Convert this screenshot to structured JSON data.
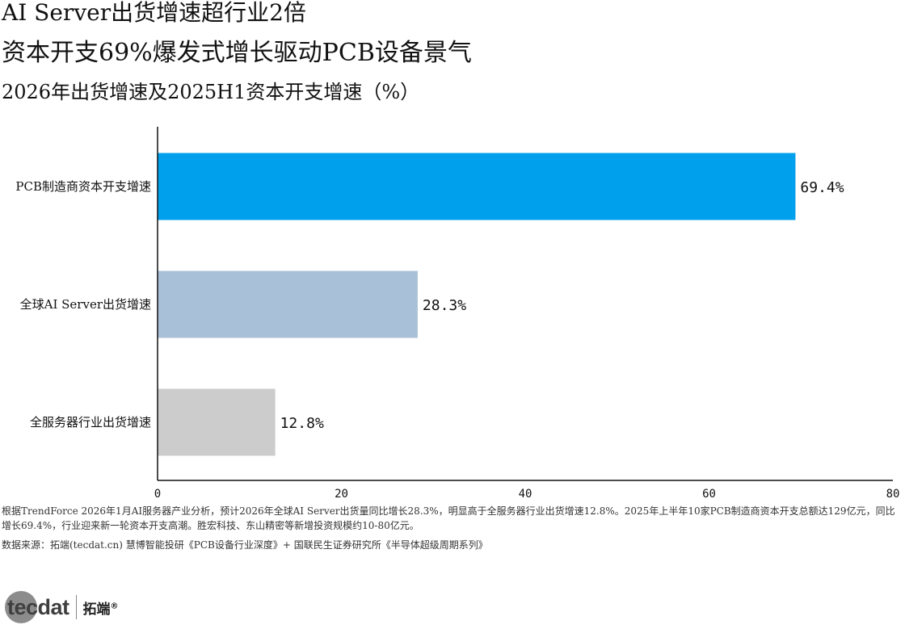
{
  "title_line1": "AI Server出货增速超行业2倍",
  "title_line2": "资本开支69%爆发式增长驱动PCB设备景气",
  "subtitle": "2026年出货增速及2025H1资本开支增速（%）",
  "chart_data": {
    "type": "bar",
    "orientation": "horizontal",
    "categories": [
      "PCB制造商资本开支增速",
      "全球AI Server出货增速",
      "全服务器行业出货增速"
    ],
    "values": [
      69.4,
      28.3,
      12.8
    ],
    "value_labels": [
      "69.4%",
      "28.3%",
      "12.8%"
    ],
    "colors": [
      "#00a0ec",
      "#a9c1d8",
      "#cccccc"
    ],
    "xlim": [
      0,
      80
    ],
    "xticks": [
      0,
      20,
      40,
      60,
      80
    ],
    "grid": false,
    "legend": "none"
  },
  "note": "根据TrendForce 2026年1月AI服务器产业分析，预计2026年全球AI Server出货量同比增长28.3%，明显高于全服务器行业出货增速12.8%。2025年上半年10家PCB制造商资本开支总额达129亿元，同比增长69.4%，行业迎来新一轮资本开支高潮。胜宏科技、东山精密等新增投资规模约10-80亿元。",
  "source": "数据来源：拓端(tecdat.cn) 慧博智能投研《PCB设备行业深度》+ 国联民生证券研究所《半导体超级周期系列》",
  "logo": {
    "text": "tecdat",
    "cn": "拓端",
    "mark": "®"
  }
}
